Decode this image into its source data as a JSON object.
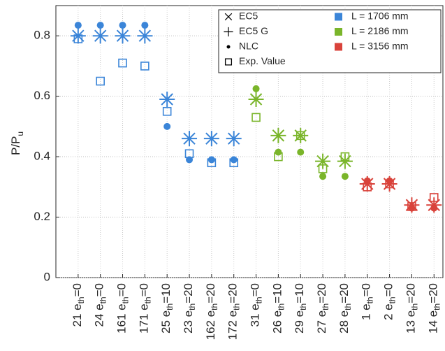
{
  "chart_data": {
    "type": "category-scatter",
    "ylabel": {
      "text": "P/P",
      "sub": "u"
    },
    "ylim": [
      0,
      0.9
    ],
    "yticks": [
      0,
      0.2,
      0.4,
      0.6,
      0.8
    ],
    "grid": true,
    "legend_position": "top-right",
    "markers": [
      {
        "name": "EC5",
        "symbol": "x"
      },
      {
        "name": "EC5 G",
        "symbol": "+"
      },
      {
        "name": "NLC",
        "symbol": "dot"
      },
      {
        "name": "Exp. Value",
        "symbol": "square"
      }
    ],
    "groups": [
      {
        "name": "L = 1706 mm",
        "color": "#3b85d8",
        "categories": [
          {
            "pre": "21 e",
            "sub": "th",
            "post": "=0"
          },
          {
            "pre": "24 e",
            "sub": "th",
            "post": "=0"
          },
          {
            "pre": "161 e",
            "sub": "th",
            "post": "=0"
          },
          {
            "pre": "171 e",
            "sub": "th",
            "post": "=0"
          },
          {
            "pre": "25 e",
            "sub": "th",
            "post": "=10"
          },
          {
            "pre": "23 e",
            "sub": "th",
            "post": "=20"
          },
          {
            "pre": "162 e",
            "sub": "th",
            "post": "=20"
          },
          {
            "pre": "172 e",
            "sub": "th",
            "post": "=20"
          }
        ],
        "values": [
          [
            0.8,
            0.8,
            0.8,
            0.8,
            0.59,
            0.46,
            0.46,
            0.46
          ],
          [
            0.8,
            0.8,
            0.8,
            0.8,
            0.59,
            0.46,
            0.46,
            0.46
          ],
          [
            0.835,
            0.835,
            0.835,
            0.835,
            0.5,
            0.39,
            0.39,
            0.39
          ],
          [
            0.79,
            0.65,
            0.71,
            0.7,
            0.55,
            0.41,
            0.38,
            0.38
          ]
        ]
      },
      {
        "name": "L = 2186 mm",
        "color": "#7ab52a",
        "categories": [
          {
            "pre": "31 e",
            "sub": "th",
            "post": "=0"
          },
          {
            "pre": "26 e",
            "sub": "th",
            "post": "=10"
          },
          {
            "pre": "29 e",
            "sub": "th",
            "post": "=10"
          },
          {
            "pre": "27 e",
            "sub": "th",
            "post": "=20"
          },
          {
            "pre": "28 e",
            "sub": "th",
            "post": "=20"
          }
        ],
        "values": [
          [
            0.59,
            0.47,
            0.47,
            0.385,
            0.385
          ],
          [
            0.59,
            0.47,
            0.47,
            0.385,
            0.385
          ],
          [
            0.625,
            0.415,
            0.415,
            0.335,
            0.335
          ],
          [
            0.53,
            0.4,
            0.47,
            0.36,
            0.4
          ]
        ]
      },
      {
        "name": "L = 3156 mm",
        "color": "#d9433b",
        "categories": [
          {
            "pre": "1 e",
            "sub": "th",
            "post": "=0"
          },
          {
            "pre": "2 e",
            "sub": "th",
            "post": "=0"
          },
          {
            "pre": "13 e",
            "sub": "th",
            "post": "=20"
          },
          {
            "pre": "14 e",
            "sub": "th",
            "post": "=20"
          }
        ],
        "values": [
          [
            0.31,
            0.31,
            0.24,
            0.24
          ],
          [
            0.31,
            0.31,
            0.24,
            0.24
          ],
          [
            0.32,
            0.32,
            0.23,
            0.23
          ],
          [
            0.3,
            0.31,
            0.235,
            0.265
          ]
        ]
      }
    ]
  }
}
